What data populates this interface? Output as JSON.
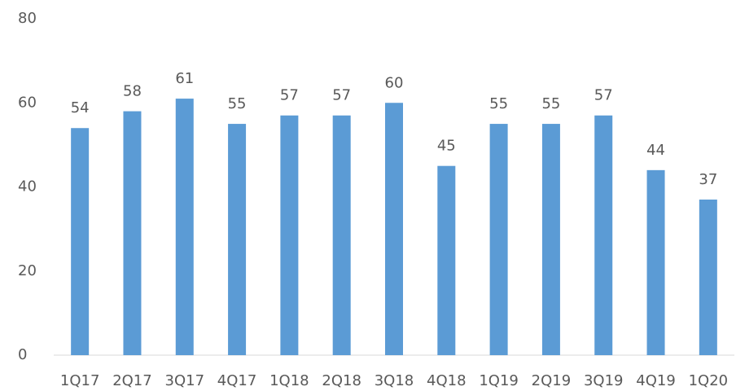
{
  "chart_data": {
    "type": "bar",
    "categories": [
      "1Q17",
      "2Q17",
      "3Q17",
      "4Q17",
      "1Q18",
      "2Q18",
      "3Q18",
      "4Q18",
      "1Q19",
      "2Q19",
      "3Q19",
      "4Q19",
      "1Q20"
    ],
    "values": [
      54,
      58,
      61,
      55,
      57,
      57,
      60,
      45,
      55,
      55,
      57,
      44,
      37
    ],
    "color": "#5b9bd5",
    "ylim": [
      0,
      80
    ],
    "yticks": [
      0,
      20,
      40,
      60,
      80
    ],
    "grid": false
  }
}
